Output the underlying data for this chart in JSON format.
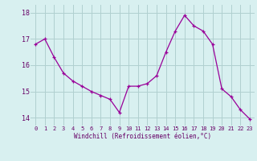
{
  "x": [
    0,
    1,
    2,
    3,
    4,
    5,
    6,
    7,
    8,
    9,
    10,
    11,
    12,
    13,
    14,
    15,
    16,
    17,
    18,
    19,
    20,
    21,
    22,
    23
  ],
  "y": [
    16.8,
    17.0,
    16.3,
    15.7,
    15.4,
    15.2,
    15.0,
    14.85,
    14.7,
    14.2,
    15.2,
    15.2,
    15.3,
    15.6,
    16.5,
    17.3,
    17.9,
    17.5,
    17.3,
    16.8,
    15.1,
    14.8,
    14.3,
    13.95
  ],
  "line_color": "#990099",
  "marker": "+",
  "marker_size": 3,
  "bg_color": "#d8f0f0",
  "grid_color": "#b0d0d0",
  "xlabel": "Windchill (Refroidissement éolien,°C)",
  "ylim": [
    13.7,
    18.3
  ],
  "xlim": [
    -0.5,
    23.5
  ],
  "xtick_labels": [
    "0",
    "1",
    "2",
    "3",
    "4",
    "5",
    "6",
    "7",
    "8",
    "9",
    "10",
    "11",
    "12",
    "13",
    "14",
    "15",
    "16",
    "17",
    "18",
    "19",
    "20",
    "21",
    "22",
    "23"
  ],
  "ytick_values": [
    14,
    15,
    16,
    17,
    18
  ],
  "font_color": "#660066"
}
